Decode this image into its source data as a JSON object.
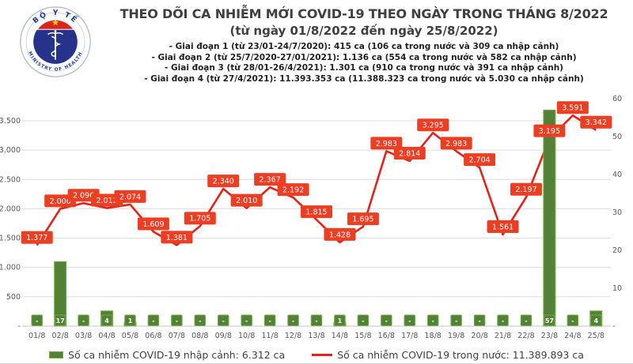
{
  "header": {
    "logo": {
      "top_text": "BỘ Y TẾ",
      "bottom_text": "MINISTRY OF HEALTH"
    },
    "title": "THEO DÕI CA NHIỄM MỚI COVID-19 THEO NGÀY TRONG THÁNG 8/2022",
    "subtitle": "(từ ngày 01/8/2022 đến ngày 25/8/2022)",
    "phases": [
      "- Giai đoạn 1 (từ 23/01-24/7/2020): 415 ca (106 ca trong nước và 309 ca nhập cảnh)",
      "- Giai đoạn 2 (từ 25/7/2020-27/01/2021): 1.136 ca (554 ca trong nước và 582 ca nhập cảnh)",
      "- Giai đoạn 3 (từ 28/01-26/4/2021): 1.301 ca (910 ca trong nước và 391 ca nhập cảnh)",
      "- Giai đoạn 4 (từ 27/4/2021): 11.393.353 ca (11.388.323 ca trong nước và 5.030 ca nhập cảnh)"
    ]
  },
  "chart_data": {
    "type": "combo-bar-line",
    "categories": [
      "01/8",
      "02/8",
      "03/8",
      "04/8",
      "05/8",
      "06/8",
      "07/8",
      "08/8",
      "09/8",
      "10/8",
      "11/8",
      "12/8",
      "13/8",
      "14/8",
      "15/8",
      "16/8",
      "17/8",
      "18/8",
      "19/8",
      "20/8",
      "21/8",
      "22/8",
      "23/8",
      "24/8",
      "25/8"
    ],
    "series": [
      {
        "name": "Số ca nhiễm COVID-19 nhập cảnh",
        "type": "bar",
        "axis": "right",
        "values": [
          0,
          17,
          0,
          4,
          1,
          0,
          0,
          0,
          0,
          0,
          0,
          0,
          0,
          1,
          0,
          0,
          0,
          0,
          0,
          0,
          0,
          0,
          57,
          0,
          4
        ],
        "point_labels": [
          "-",
          "17",
          "-",
          "4",
          "1",
          "-",
          "-",
          "-",
          "-",
          "-",
          "-",
          "-",
          "-",
          "1",
          "-",
          "-",
          "-",
          "-",
          "-",
          "-",
          "-",
          "-",
          "57",
          "-",
          "4"
        ],
        "color": "#538135",
        "border_color": "#70ad47"
      },
      {
        "name": "Số ca nhiễm COVID-19 trong nước",
        "type": "line",
        "axis": "left",
        "values": [
          1377,
          2000,
          2096,
          2012,
          2074,
          1609,
          1381,
          1705,
          2340,
          2010,
          2367,
          2192,
          1815,
          1428,
          1695,
          2983,
          2814,
          3295,
          2983,
          2704,
          1561,
          2197,
          3195,
          3591,
          3342
        ],
        "point_labels": [
          "1.377",
          "2.000",
          "2.096",
          "2.012",
          "2.074",
          "1.609",
          "1.381",
          "1.705",
          "2.340",
          "2.010",
          "2.367",
          "2.192",
          "1.815",
          "1.428",
          "1.695",
          "2.983",
          "2.814",
          "3.295",
          "2.983",
          "2.704",
          "1.561",
          "2.197",
          "3.195",
          "3.591",
          "3.342"
        ],
        "color": "#e3231a",
        "label_bg": "#ec3e22"
      }
    ],
    "left_axis": {
      "min": 0,
      "max": 3500,
      "ticks": [
        "-",
        "500",
        "1.000",
        "1.500",
        "2.000",
        "2.500",
        "3.000",
        "3.500"
      ]
    },
    "right_axis": {
      "min": 0,
      "max": 60,
      "ticks": [
        "-",
        "10",
        "20",
        "30",
        "40",
        "50",
        "60"
      ]
    },
    "gridlines": true,
    "legend_position": "bottom"
  },
  "legend": {
    "bar_label": "Số ca nhiễm COVID-19 nhập cảnh: 6.312 ca",
    "line_label": "Số ca nhiễm COVID-19 trong nước: 11.389.893 ca"
  },
  "colors": {
    "grid": "#dcdcdc",
    "axis_line": "#c4c4c4",
    "axis_text": "#595959",
    "bar_green": "#538135",
    "bar_border_green": "#70ad47",
    "line_red": "#e3231a",
    "label_red": "#ec3e22",
    "logo_navy": "#25338a",
    "logo_red": "#da251d",
    "logo_star": "#ffd400"
  }
}
